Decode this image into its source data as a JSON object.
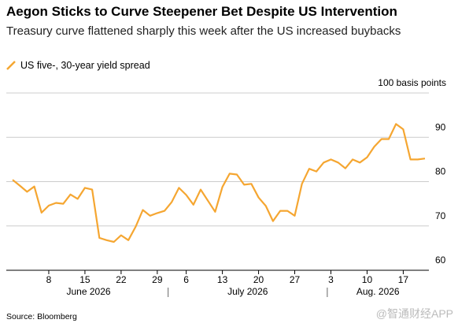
{
  "chart_data": {
    "type": "line",
    "title": "Aegon Sticks to Curve Steepener Bet Despite US Intervention",
    "subtitle": "Treasury curve flattened sharply this week after the US increased buybacks",
    "source": "Source: Bloomberg",
    "watermark": "@智通财经APP",
    "x": [
      "2026-06-01",
      "2026-06-02",
      "2026-06-03",
      "2026-06-04",
      "2026-06-05",
      "2026-06-08",
      "2026-06-09",
      "2026-06-10",
      "2026-06-11",
      "2026-06-12",
      "2026-06-15",
      "2026-06-16",
      "2026-06-17",
      "2026-06-18",
      "2026-06-19",
      "2026-06-22",
      "2026-06-23",
      "2026-06-24",
      "2026-06-25",
      "2026-06-26",
      "2026-06-29",
      "2026-06-30",
      "2026-07-01",
      "2026-07-02",
      "2026-07-06",
      "2026-07-07",
      "2026-07-08",
      "2026-07-09",
      "2026-07-10",
      "2026-07-13",
      "2026-07-14",
      "2026-07-15",
      "2026-07-16",
      "2026-07-17",
      "2026-07-20",
      "2026-07-21",
      "2026-07-22",
      "2026-07-23",
      "2026-07-24",
      "2026-07-27",
      "2026-07-28",
      "2026-07-29",
      "2026-07-30",
      "2026-07-31",
      "2026-08-03",
      "2026-08-04",
      "2026-08-05",
      "2026-08-06",
      "2026-08-07",
      "2026-08-10",
      "2026-08-11",
      "2026-08-12",
      "2026-08-13",
      "2026-08-14",
      "2026-08-17",
      "2026-08-18",
      "2026-08-19",
      "2026-08-20"
    ],
    "series": [
      {
        "name": "US five-, 30-year yield spread",
        "color": "#f5a631",
        "values": [
          80.4,
          79.1,
          77.7,
          78.9,
          73.0,
          74.6,
          75.2,
          75.0,
          77.1,
          76.1,
          78.6,
          78.2,
          67.3,
          66.8,
          66.4,
          67.9,
          66.8,
          69.8,
          73.6,
          72.3,
          72.9,
          73.4,
          75.4,
          78.6,
          77.0,
          74.8,
          78.2,
          75.7,
          73.2,
          78.8,
          81.8,
          81.6,
          79.3,
          79.5,
          76.4,
          74.5,
          71.1,
          73.4,
          73.4,
          72.3,
          79.5,
          82.9,
          82.3,
          84.3,
          85.0,
          84.3,
          83.0,
          85.0,
          84.3,
          85.5,
          87.9,
          89.6,
          89.6,
          93.0,
          91.8,
          85.0,
          85.0,
          85.2
        ]
      }
    ],
    "ylim": [
      60,
      100
    ],
    "yticks": [
      60,
      70,
      80,
      90,
      {
        "value": 100,
        "label": "100 basis points"
      }
    ],
    "xticks": [
      {
        "value": "2026-06-08",
        "label": "8"
      },
      {
        "value": "2026-06-15",
        "label": "15"
      },
      {
        "value": "2026-06-22",
        "label": "22"
      },
      {
        "value": "2026-06-29",
        "label": "29"
      },
      {
        "value": "2026-07-06",
        "label": "6"
      },
      {
        "value": "2026-07-13",
        "label": "13"
      },
      {
        "value": "2026-07-20",
        "label": "20"
      },
      {
        "value": "2026-07-27",
        "label": "27"
      },
      {
        "value": "2026-08-03",
        "label": "3"
      },
      {
        "value": "2026-08-10",
        "label": "10"
      },
      {
        "value": "2026-08-17",
        "label": "17"
      }
    ],
    "x_month_labels": [
      {
        "value": "2026-06",
        "label": "June 2026"
      },
      {
        "value": "2026-07",
        "label": "July 2026"
      },
      {
        "value": "2026-08",
        "label": "Aug. 2026"
      }
    ],
    "grid": true
  }
}
